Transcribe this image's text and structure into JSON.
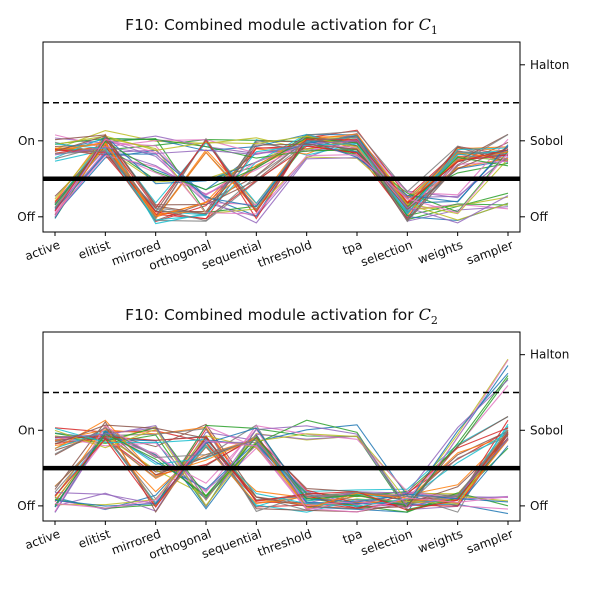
{
  "chart_data": [
    {
      "type": "line",
      "title_prefix": "F10:  Combined module activation for ",
      "title_symbol": "C",
      "title_subscript": "1",
      "categories": [
        "active",
        "elitist",
        "mirrored",
        "orthogonal",
        "sequential",
        "threshold",
        "tpa",
        "selection",
        "weights",
        "sampler"
      ],
      "left_ticks": [
        {
          "value": 0,
          "label": "Off"
        },
        {
          "value": 1,
          "label": "On"
        }
      ],
      "right_ticks": [
        {
          "value": 0,
          "label": "Off"
        },
        {
          "value": 1,
          "label": "Sobol"
        },
        {
          "value": 2,
          "label": "Halton"
        }
      ],
      "ylim": [
        -0.2,
        2.3
      ],
      "dashed_line": 1.5,
      "thick_line": 0.5,
      "series_count": 48,
      "series_base": [
        [
          0.05,
          0.93,
          0.55,
          0.4,
          0.75,
          0.95,
          0.93,
          0.15,
          0.7,
          0.75
        ],
        [
          0.15,
          1.0,
          0.1,
          0.9,
          0.1,
          1.0,
          1.0,
          0.2,
          0.8,
          0.8
        ],
        [
          0.95,
          1.0,
          0.95,
          0.95,
          0.9,
          1.0,
          1.0,
          0.05,
          0.05,
          0.2
        ],
        [
          0.85,
          0.95,
          0.05,
          0.1,
          0.95,
          0.95,
          0.95,
          0.1,
          0.75,
          0.85
        ],
        [
          0.1,
          0.9,
          0.9,
          0.15,
          0.05,
          0.9,
          0.9,
          0.2,
          0.15,
          0.9
        ],
        [
          0.9,
          0.95,
          0.05,
          0.05,
          0.6,
          0.95,
          0.95,
          0.05,
          0.8,
          0.95
        ]
      ],
      "colors": [
        "#1f77b4",
        "#ff7f0e",
        "#2ca02c",
        "#d62728",
        "#9467bd",
        "#8c564b",
        "#e377c2",
        "#7f7f7f",
        "#bcbd22",
        "#17becf"
      ]
    },
    {
      "type": "line",
      "title_prefix": "F10:  Combined module activation for ",
      "title_symbol": "C",
      "title_subscript": "2",
      "categories": [
        "active",
        "elitist",
        "mirrored",
        "orthogonal",
        "sequential",
        "threshold",
        "tpa",
        "selection",
        "weights",
        "sampler"
      ],
      "left_ticks": [
        {
          "value": 0,
          "label": "Off"
        },
        {
          "value": 1,
          "label": "On"
        }
      ],
      "right_ticks": [
        {
          "value": 0,
          "label": "Off"
        },
        {
          "value": 1,
          "label": "Sobol"
        },
        {
          "value": 2,
          "label": "Halton"
        }
      ],
      "ylim": [
        -0.2,
        2.3
      ],
      "dashed_line": 1.5,
      "thick_line": 0.5,
      "series_count": 48,
      "series_base": [
        [
          0.05,
          0.95,
          0.6,
          0.2,
          0.9,
          0.05,
          0.05,
          0.05,
          0.9,
          2.0
        ],
        [
          0.15,
          1.0,
          0.05,
          0.9,
          0.1,
          0.05,
          0.05,
          0.05,
          0.15,
          1.0
        ],
        [
          0.95,
          0.9,
          0.95,
          0.1,
          0.95,
          1.0,
          1.0,
          0.05,
          0.1,
          0.9
        ],
        [
          0.9,
          0.95,
          0.9,
          0.95,
          0.05,
          0.1,
          0.1,
          0.1,
          0.7,
          1.05
        ],
        [
          0.1,
          0.05,
          0.05,
          0.95,
          0.9,
          0.05,
          0.05,
          0.05,
          0.1,
          0.0
        ],
        [
          0.8,
          1.0,
          0.5,
          0.6,
          0.95,
          0.1,
          0.1,
          0.1,
          0.05,
          0.95
        ]
      ],
      "colors": [
        "#1f77b4",
        "#ff7f0e",
        "#2ca02c",
        "#d62728",
        "#9467bd",
        "#8c564b",
        "#e377c2",
        "#7f7f7f",
        "#bcbd22",
        "#17becf"
      ]
    }
  ]
}
